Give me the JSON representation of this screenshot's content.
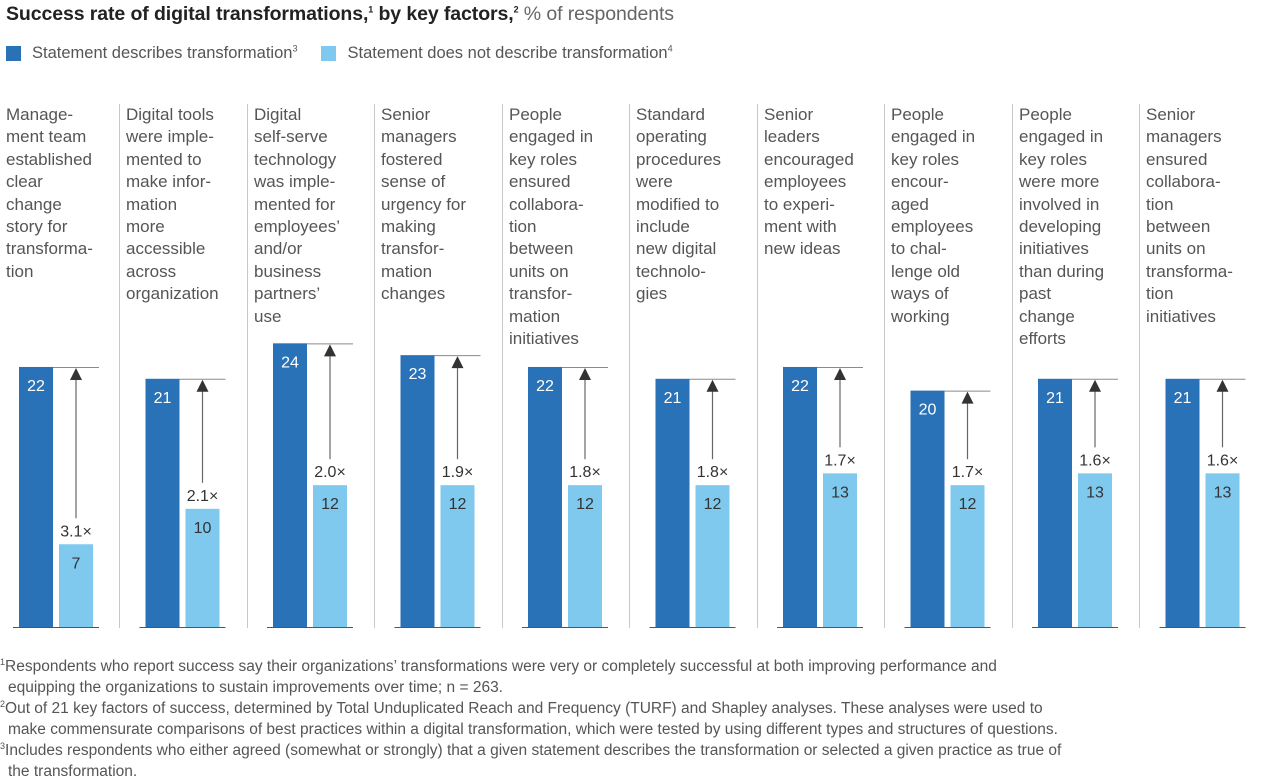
{
  "title": {
    "main": "Success rate of digital transformations,",
    "main_sup": "1",
    "by": " by key factors,",
    "by_sup": "2",
    "unit": " % of respondents"
  },
  "legend": [
    {
      "label": "Statement describes transformation",
      "sup": "3",
      "color": "#2a72b8"
    },
    {
      "label": "Statement does not describe transformation",
      "sup": "4",
      "color": "#7fc9ee"
    }
  ],
  "colors": {
    "describes": "#2a72b8",
    "not_describes": "#7fc9ee",
    "arrow": "#333333",
    "reference_line": "#8a8a8a",
    "baseline": "#555555",
    "divider": "#c8c8c8"
  },
  "chart_data": {
    "type": "bar",
    "title": "Success rate of digital transformations, by key factors, % of respondents",
    "xlabel": "",
    "ylabel": "% of respondents",
    "ylim": [
      0,
      24
    ],
    "grid": false,
    "legend_position": "top-left",
    "categories": [
      "Management team established clear change story for transformation",
      "Digital tools were implemented to make information more accessible across organization",
      "Digital self-serve technology was implemented for employees' and/or business partners' use",
      "Senior managers fostered sense of urgency for making transformation changes",
      "People engaged in key roles ensured collaboration between units on transformation initiatives",
      "Standard operating procedures were modified to include new digital technologies",
      "Senior leaders encouraged employees to experiment with new ideas",
      "People engaged in key roles encouraged employees to challenge old ways of working",
      "People engaged in key roles were more involved in developing initiatives than during past change efforts",
      "Senior managers ensured collaboration between units on transformation initiatives"
    ],
    "category_labels_wrapped": [
      "Manage-\nment team\nestablished\nclear\nchange\nstory for\ntransforma-\ntion",
      "Digital tools\nwere imple-\nmented to\nmake infor-\nmation\nmore\naccessible\nacross\norganization",
      "Digital\nself-serve\ntechnology\nwas imple-\nmented for\nemployees’\nand/or\nbusiness\npartners’\nuse",
      "Senior\nmanagers\nfostered\nsense of\nurgency for\nmaking\ntransfor-\nmation\nchanges",
      "People\nengaged in\nkey roles\nensured\ncollabora-\ntion\nbetween\nunits on\ntransfor-\nmation\ninitiatives",
      "Standard\noperating\nprocedures\nwere\nmodified to\ninclude\nnew digital\ntechnolo-\ngies",
      "Senior\nleaders\nencouraged\nemployees\nto experi-\nment with\nnew ideas",
      "People\nengaged in\nkey roles\nencour-\naged\nemployees\nto chal-\nlenge old\nways of\nworking",
      "People\nengaged in\nkey roles\nwere more\ninvolved in\ndeveloping\ninitiatives\nthan during\npast\nchange\nefforts",
      "Senior\nmanagers\nensured\ncollabora-\ntion\nbetween\nunits on\ntransforma-\ntion\ninitiatives"
    ],
    "series": [
      {
        "name": "Statement describes transformation",
        "values": [
          22,
          21,
          24,
          23,
          22,
          21,
          22,
          20,
          21,
          21
        ]
      },
      {
        "name": "Statement does not describe transformation",
        "values": [
          7,
          10,
          12,
          12,
          12,
          12,
          13,
          12,
          13,
          13
        ]
      }
    ],
    "multipliers": [
      "3.1×",
      "2.1×",
      "2.0×",
      "1.9×",
      "1.8×",
      "1.8×",
      "1.7×",
      "1.7×",
      "1.6×",
      "1.6×"
    ],
    "value_labels": {
      "describes": [
        "22",
        "21",
        "24",
        "23",
        "22",
        "21",
        "22",
        "20",
        "21",
        "21"
      ],
      "not_describes": [
        "7",
        "10",
        "12",
        "12",
        "12",
        "12",
        "13",
        "12",
        "13",
        "13"
      ]
    }
  },
  "footnotes": [
    {
      "sup": "1",
      "lines": [
        "Respondents who report success say their organizations’ transformations were very or completely successful at both improving performance and",
        "equipping the organizations to sustain improvements over time; n = 263."
      ]
    },
    {
      "sup": "2",
      "lines": [
        "Out of 21 key factors of success, determined by Total Unduplicated Reach and Frequency (TURF) and Shapley analyses. These analyses were used to",
        "make commensurate comparisons of best practices within a digital transformation, which were tested by using different types and structures of questions."
      ]
    },
    {
      "sup": "3",
      "lines": [
        "Includes respondents who either agreed (somewhat or strongly) that a given statement describes the transformation or selected a given practice as true of",
        "the transformation."
      ]
    }
  ]
}
